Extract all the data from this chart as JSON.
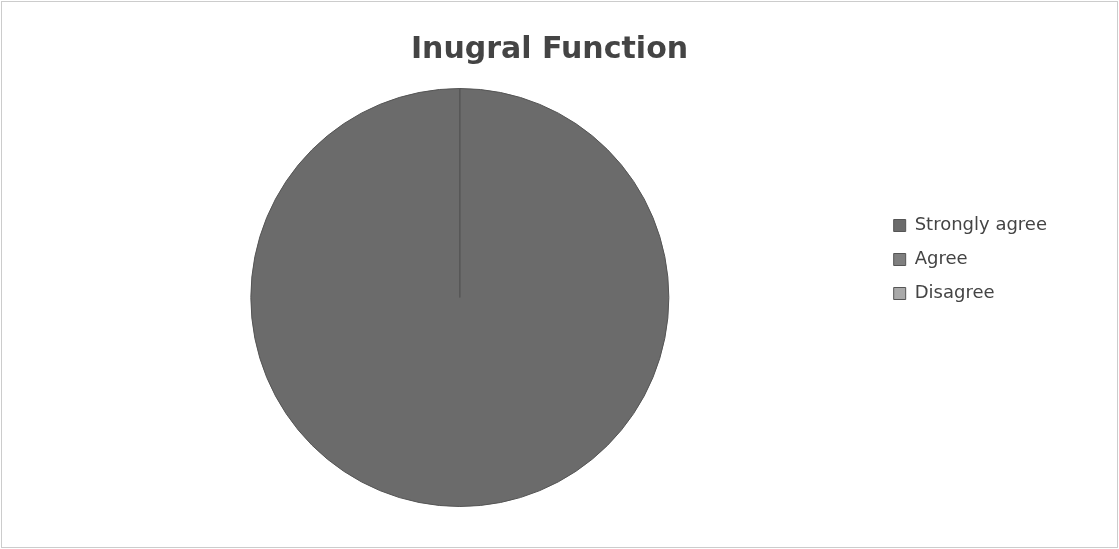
{
  "chart_data": {
    "type": "pie",
    "title": "Inugral Function",
    "categories": [
      "Strongly agree",
      "Agree",
      "Disagree"
    ],
    "values": [
      100,
      0,
      0
    ],
    "colors": [
      "#6b6b6b",
      "#7f7f7f",
      "#a9a9a9"
    ],
    "legend": "right"
  }
}
